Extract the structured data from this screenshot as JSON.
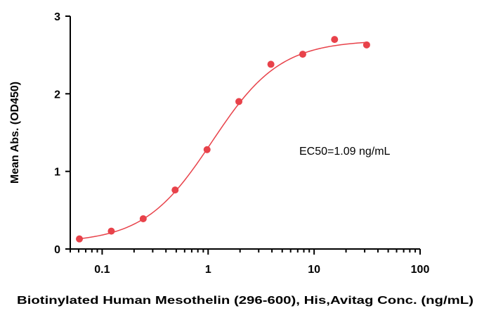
{
  "chart_data": {
    "type": "scatter",
    "title": "",
    "xlabel": "Biotinylated Human Mesothelin (296-600), His,Avitag Conc. (ng/mL)",
    "ylabel": "Mean Abs. (OD450)",
    "xscale": "log",
    "xlim": [
      0.05,
      100
    ],
    "ylim": [
      0,
      3
    ],
    "xticks": [
      0.1,
      1,
      10,
      100
    ],
    "xtick_labels": [
      "0.1",
      "1",
      "10",
      "100"
    ],
    "yticks": [
      0,
      1,
      2,
      3
    ],
    "ytick_labels": [
      "0",
      "1",
      "2",
      "3"
    ],
    "grid": false,
    "legend": "none",
    "annotation": "EC50=1.09 ng/mL",
    "series": [
      {
        "x": [
          0.061,
          0.122,
          0.244,
          0.488,
          0.977,
          1.95,
          3.91,
          7.81,
          15.6,
          31.3
        ],
        "y": [
          0.13,
          0.23,
          0.39,
          0.76,
          1.28,
          1.9,
          2.38,
          2.51,
          2.7,
          2.63
        ],
        "color": "#e8424a",
        "fit": {
          "model": "4PL",
          "bottom": 0.08,
          "top": 2.69,
          "ec50": 1.09,
          "hill": 1.35
        }
      }
    ]
  }
}
